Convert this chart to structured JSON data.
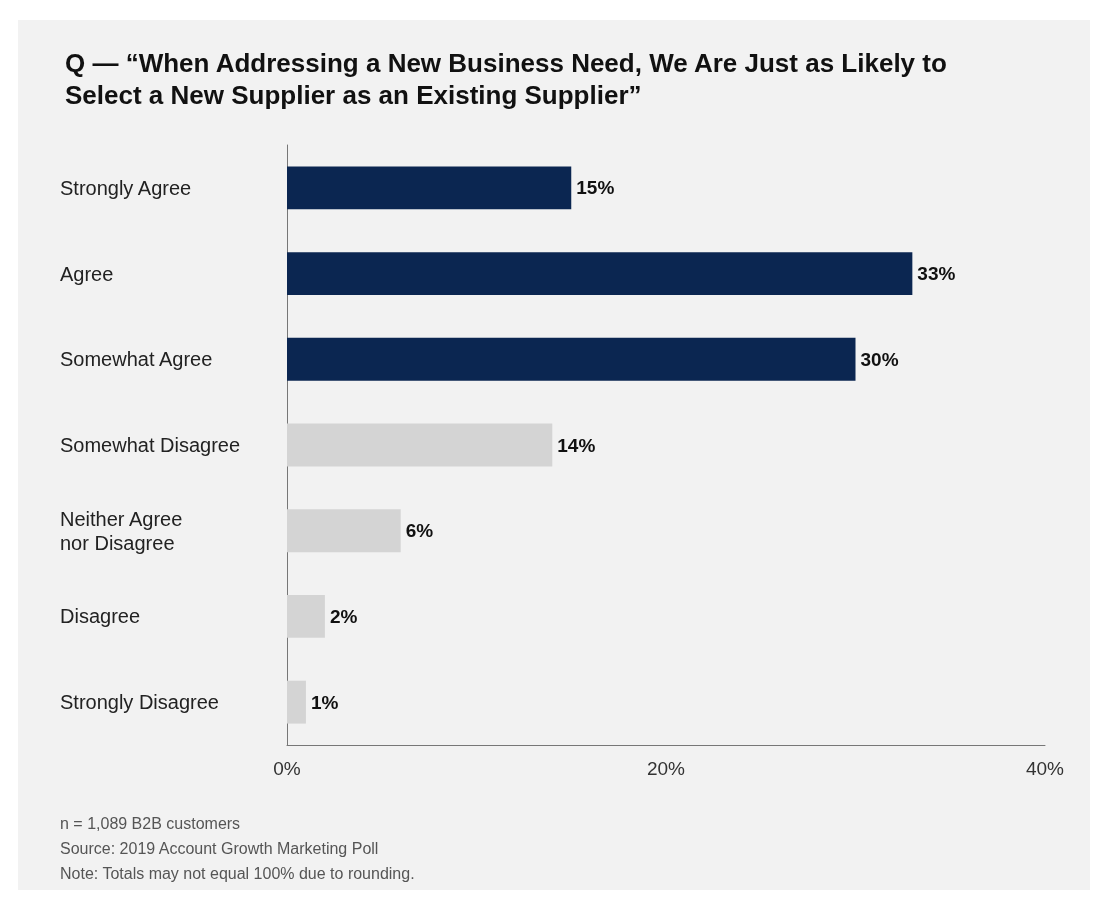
{
  "chart_data": {
    "type": "bar",
    "orientation": "horizontal",
    "title": "Q — “When Addressing a New Business Need, We Are Just as Likely to Select a New Supplier as an Existing Supplier”",
    "categories": [
      "Strongly Agree",
      "Agree",
      "Somewhat Agree",
      "Somewhat Disagree",
      "Neither Agree\nnor Disagree",
      "Disagree",
      "Strongly Disagree"
    ],
    "values": [
      15,
      33,
      30,
      14,
      6,
      2,
      1
    ],
    "colors": [
      "#0b2651",
      "#0b2651",
      "#0b2651",
      "#d4d4d4",
      "#d4d4d4",
      "#d4d4d4",
      "#d4d4d4"
    ],
    "value_labels": [
      "15%",
      "33%",
      "30%",
      "14%",
      "6%",
      "2%",
      "1%"
    ],
    "xlim": [
      0,
      40
    ],
    "xticks": [
      {
        "value": 0,
        "label": "0%"
      },
      {
        "value": 20,
        "label": "20%"
      },
      {
        "value": 40,
        "label": "40%"
      }
    ],
    "grid": false,
    "annotations": [
      "n = 1,089 B2B customers",
      "Source: 2019 Account Growth Marketing Poll",
      "Note: Totals may not equal 100% due to rounding."
    ]
  }
}
